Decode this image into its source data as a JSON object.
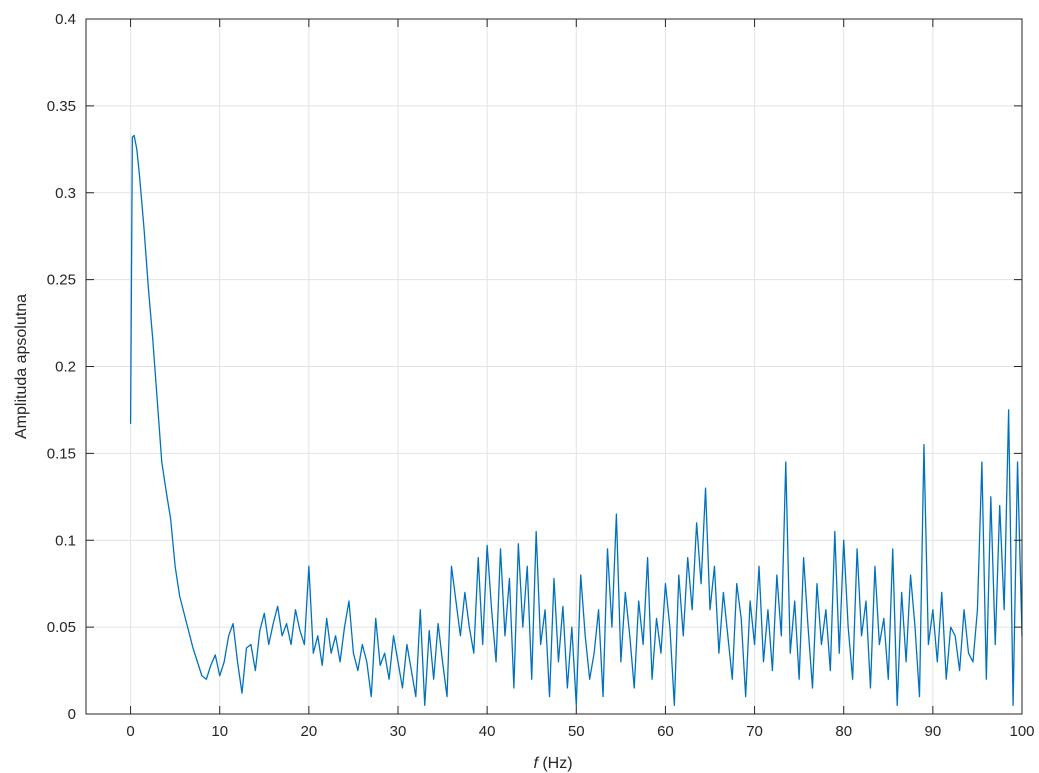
{
  "chart_data": {
    "type": "line",
    "title": "",
    "xlabel_italic": "f",
    "xlabel_unit": " (Hz)",
    "ylabel": "Amplituda apsolutna",
    "xlim": [
      -5,
      100
    ],
    "ylim": [
      0,
      0.4
    ],
    "xticks": [
      0,
      10,
      20,
      30,
      40,
      50,
      60,
      70,
      80,
      90,
      100
    ],
    "yticks": [
      0,
      0.05,
      0.1,
      0.15,
      0.2,
      0.25,
      0.3,
      0.35,
      0.4
    ],
    "grid": true,
    "line_color": "#0072BD",
    "series": [
      {
        "x": [
          0,
          0.2,
          0.4,
          0.7,
          1.0,
          1.5,
          2.0,
          2.5,
          3.0,
          3.5,
          4.0,
          4.5,
          5.0,
          5.5,
          6.0,
          6.5,
          7.0,
          7.5,
          8.0,
          8.5,
          9.0,
          9.5,
          10.0,
          10.5,
          11.0,
          11.5,
          12.0,
          12.5,
          13.0,
          13.5,
          14.0,
          14.5,
          15.0,
          15.5,
          16.0,
          16.5,
          17.0,
          17.5,
          18.0,
          18.5,
          19.0,
          19.5,
          20.0,
          20.5,
          21.0,
          21.5,
          22.0,
          22.5,
          23.0,
          23.5,
          24.0,
          24.5,
          25.0,
          25.5,
          26.0,
          26.5,
          27.0,
          27.5,
          28.0,
          28.5,
          29.0,
          29.5,
          30.0,
          30.5,
          31.0,
          31.5,
          32.0,
          32.5,
          33.0,
          33.5,
          34.0,
          34.5,
          35.0,
          35.5,
          36.0,
          36.5,
          37.0,
          37.5,
          38.0,
          38.5,
          39.0,
          39.5,
          40.0,
          40.5,
          41.0,
          41.5,
          42.0,
          42.5,
          43.0,
          43.5,
          44.0,
          44.5,
          45.0,
          45.5,
          46.0,
          46.5,
          47.0,
          47.5,
          48.0,
          48.5,
          49.0,
          49.5,
          50.0,
          50.5,
          51.0,
          51.5,
          52.0,
          52.5,
          53.0,
          53.5,
          54.0,
          54.5,
          55.0,
          55.5,
          56.0,
          56.5,
          57.0,
          57.5,
          58.0,
          58.5,
          59.0,
          59.5,
          60.0,
          60.5,
          61.0,
          61.5,
          62.0,
          62.5,
          63.0,
          63.5,
          64.0,
          64.5,
          65.0,
          65.5,
          66.0,
          66.5,
          67.0,
          67.5,
          68.0,
          68.5,
          69.0,
          69.5,
          70.0,
          70.5,
          71.0,
          71.5,
          72.0,
          72.5,
          73.0,
          73.5,
          74.0,
          74.5,
          75.0,
          75.5,
          76.0,
          76.5,
          77.0,
          77.5,
          78.0,
          78.5,
          79.0,
          79.5,
          80.0,
          80.5,
          81.0,
          81.5,
          82.0,
          82.5,
          83.0,
          83.5,
          84.0,
          84.5,
          85.0,
          85.5,
          86.0,
          86.5,
          87.0,
          87.5,
          88.0,
          88.5,
          89.0,
          89.5,
          90.0,
          90.5,
          91.0,
          91.5,
          92.0,
          92.5,
          93.0,
          93.5,
          94.0,
          94.5,
          95.0,
          95.5,
          96.0,
          96.5,
          97.0,
          97.5,
          98.0,
          98.5,
          99.0,
          99.5,
          100.0
        ],
        "y": [
          0.167,
          0.332,
          0.333,
          0.325,
          0.31,
          0.28,
          0.245,
          0.215,
          0.18,
          0.145,
          0.128,
          0.112,
          0.085,
          0.068,
          0.058,
          0.048,
          0.038,
          0.03,
          0.022,
          0.02,
          0.028,
          0.034,
          0.022,
          0.03,
          0.045,
          0.052,
          0.03,
          0.012,
          0.038,
          0.04,
          0.025,
          0.048,
          0.058,
          0.04,
          0.052,
          0.062,
          0.045,
          0.052,
          0.04,
          0.06,
          0.048,
          0.04,
          0.085,
          0.035,
          0.045,
          0.028,
          0.055,
          0.035,
          0.045,
          0.03,
          0.05,
          0.065,
          0.035,
          0.025,
          0.04,
          0.03,
          0.01,
          0.055,
          0.028,
          0.035,
          0.02,
          0.045,
          0.03,
          0.015,
          0.04,
          0.025,
          0.01,
          0.06,
          0.005,
          0.048,
          0.02,
          0.052,
          0.03,
          0.01,
          0.085,
          0.065,
          0.045,
          0.07,
          0.05,
          0.035,
          0.09,
          0.04,
          0.097,
          0.06,
          0.03,
          0.095,
          0.045,
          0.078,
          0.015,
          0.098,
          0.05,
          0.085,
          0.02,
          0.105,
          0.04,
          0.06,
          0.01,
          0.078,
          0.03,
          0.062,
          0.015,
          0.05,
          0.005,
          0.08,
          0.045,
          0.02,
          0.035,
          0.06,
          0.01,
          0.095,
          0.05,
          0.115,
          0.03,
          0.07,
          0.045,
          0.015,
          0.065,
          0.04,
          0.09,
          0.02,
          0.055,
          0.035,
          0.075,
          0.05,
          0.005,
          0.08,
          0.045,
          0.09,
          0.06,
          0.11,
          0.075,
          0.13,
          0.06,
          0.085,
          0.035,
          0.07,
          0.045,
          0.02,
          0.075,
          0.055,
          0.01,
          0.065,
          0.04,
          0.085,
          0.03,
          0.06,
          0.025,
          0.08,
          0.045,
          0.145,
          0.035,
          0.065,
          0.02,
          0.09,
          0.05,
          0.015,
          0.075,
          0.04,
          0.06,
          0.025,
          0.105,
          0.035,
          0.1,
          0.05,
          0.02,
          0.095,
          0.045,
          0.065,
          0.015,
          0.085,
          0.04,
          0.055,
          0.02,
          0.095,
          0.005,
          0.07,
          0.03,
          0.08,
          0.05,
          0.01,
          0.155,
          0.04,
          0.06,
          0.03,
          0.07,
          0.02,
          0.05,
          0.045,
          0.025,
          0.06,
          0.035,
          0.03,
          0.06,
          0.145,
          0.02,
          0.125,
          0.04,
          0.12,
          0.06,
          0.175,
          0.005,
          0.145,
          0.045
        ]
      }
    ]
  }
}
